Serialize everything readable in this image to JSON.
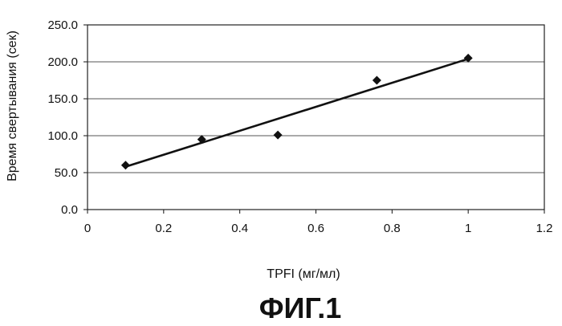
{
  "chart_data": {
    "type": "scatter",
    "x": [
      0.1,
      0.3,
      0.5,
      0.76,
      1.0
    ],
    "y": [
      60,
      95,
      101,
      175,
      205
    ],
    "trendline": {
      "x": [
        0.1,
        1.0
      ],
      "y": [
        58,
        204
      ]
    },
    "xlabel": "TPFI (мг/мл)",
    "ylabel": "Время свертывания (сек)",
    "xlim": [
      0,
      1.2
    ],
    "ylim": [
      0,
      250
    ],
    "x_ticks": [
      "0",
      "0.2",
      "0.4",
      "0.6",
      "0.8",
      "1",
      "1.2"
    ],
    "y_ticks": [
      "0.0",
      "50.0",
      "100.0",
      "150.0",
      "200.0",
      "250.0"
    ],
    "grid": "horizontal",
    "marker": "diamond",
    "colors": {
      "marker": "#111111",
      "line": "#111111",
      "grid": "#555555"
    }
  },
  "caption": "ФИГ.1"
}
